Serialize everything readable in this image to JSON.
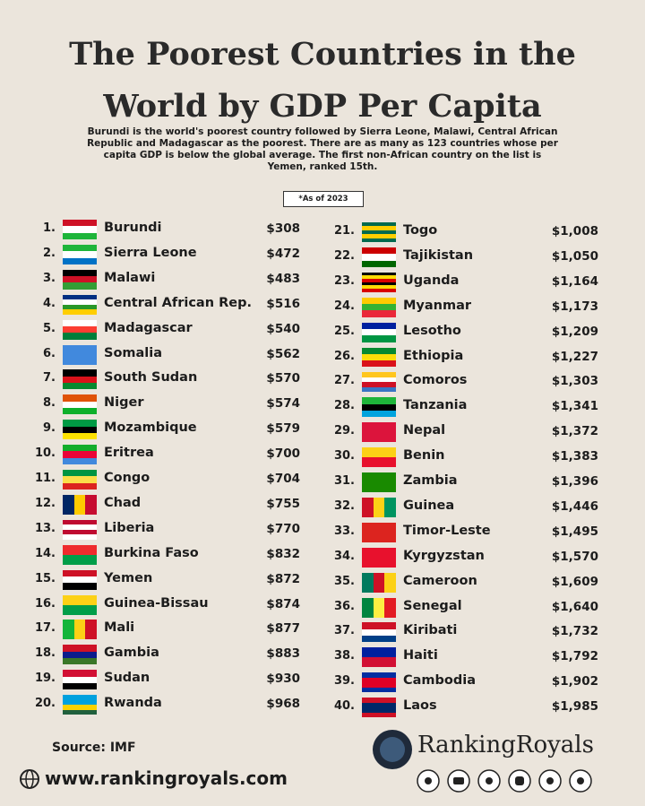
{
  "header": {
    "title": [
      "The Poorest Countries in the",
      "World by GDP Per Capita"
    ],
    "description": [
      "Burundi is the world's poorest country followed by Sierra Leone, Malawi, Central African",
      "Republic and Madagascar as the poorest. There are as many as 123 countries whose per",
      "capita GDP is below the global average. The first non-African country on the list is",
      "Yemen, ranked 15th."
    ],
    "note": "*As of 2023"
  },
  "rows": [
    {
      "rank": "1.",
      "country": "Burundi",
      "gdp": "$308"
    },
    {
      "rank": "2.",
      "country": "Sierra Leone",
      "gdp": "$472"
    },
    {
      "rank": "3.",
      "country": "Malawi",
      "gdp": "$483"
    },
    {
      "rank": "4.",
      "country": "Central African Rep.",
      "gdp": "$516"
    },
    {
      "rank": "5.",
      "country": "Madagascar",
      "gdp": "$540"
    },
    {
      "rank": "6.",
      "country": "Somalia",
      "gdp": "$562"
    },
    {
      "rank": "7.",
      "country": "South Sudan",
      "gdp": "$570"
    },
    {
      "rank": "8.",
      "country": "Niger",
      "gdp": "$574"
    },
    {
      "rank": "9.",
      "country": "Mozambique",
      "gdp": "$579"
    },
    {
      "rank": "10.",
      "country": "Eritrea",
      "gdp": "$700"
    },
    {
      "rank": "11.",
      "country": "Congo",
      "gdp": "$704"
    },
    {
      "rank": "12.",
      "country": "Chad",
      "gdp": "$755"
    },
    {
      "rank": "13.",
      "country": "Liberia",
      "gdp": "$770"
    },
    {
      "rank": "14.",
      "country": "Burkina Faso",
      "gdp": "$832"
    },
    {
      "rank": "15.",
      "country": "Yemen",
      "gdp": "$872"
    },
    {
      "rank": "16.",
      "country": "Guinea-Bissau",
      "gdp": "$874"
    },
    {
      "rank": "17.",
      "country": "Mali",
      "gdp": "$877"
    },
    {
      "rank": "18.",
      "country": "Gambia",
      "gdp": "$883"
    },
    {
      "rank": "19.",
      "country": "Sudan",
      "gdp": "$930"
    },
    {
      "rank": "20.",
      "country": "Rwanda",
      "gdp": "$968"
    },
    {
      "rank": "21.",
      "country": "Togo",
      "gdp": "$1,008"
    },
    {
      "rank": "22.",
      "country": "Tajikistan",
      "gdp": "$1,050"
    },
    {
      "rank": "23.",
      "country": "Uganda",
      "gdp": "$1,164"
    },
    {
      "rank": "24.",
      "country": "Myanmar",
      "gdp": "$1,173"
    },
    {
      "rank": "25.",
      "country": "Lesotho",
      "gdp": "$1,209"
    },
    {
      "rank": "26.",
      "country": "Ethiopia",
      "gdp": "$1,227"
    },
    {
      "rank": "27.",
      "country": "Comoros",
      "gdp": "$1,303"
    },
    {
      "rank": "28.",
      "country": "Tanzania",
      "gdp": "$1,341"
    },
    {
      "rank": "29.",
      "country": "Nepal",
      "gdp": "$1,372"
    },
    {
      "rank": "30.",
      "country": "Benin",
      "gdp": "$1,383"
    },
    {
      "rank": "31.",
      "country": "Zambia",
      "gdp": "$1,396"
    },
    {
      "rank": "32.",
      "country": "Guinea",
      "gdp": "$1,446"
    },
    {
      "rank": "33.",
      "country": "Timor-Leste",
      "gdp": "$1,495"
    },
    {
      "rank": "34.",
      "country": "Kyrgyzstan",
      "gdp": "$1,570"
    },
    {
      "rank": "35.",
      "country": "Cameroon",
      "gdp": "$1,609"
    },
    {
      "rank": "36.",
      "country": "Senegal",
      "gdp": "$1,640"
    },
    {
      "rank": "37.",
      "country": "Kiribati",
      "gdp": "$1,732"
    },
    {
      "rank": "38.",
      "country": "Haiti",
      "gdp": "$1,792"
    },
    {
      "rank": "39.",
      "country": "Cambodia",
      "gdp": "$1,902"
    },
    {
      "rank": "40.",
      "country": "Laos",
      "gdp": "$1,985"
    }
  ],
  "footer": {
    "source": "Source: IMF",
    "website": "www.rankingroyals.com",
    "brand": "RankingRoyals"
  }
}
